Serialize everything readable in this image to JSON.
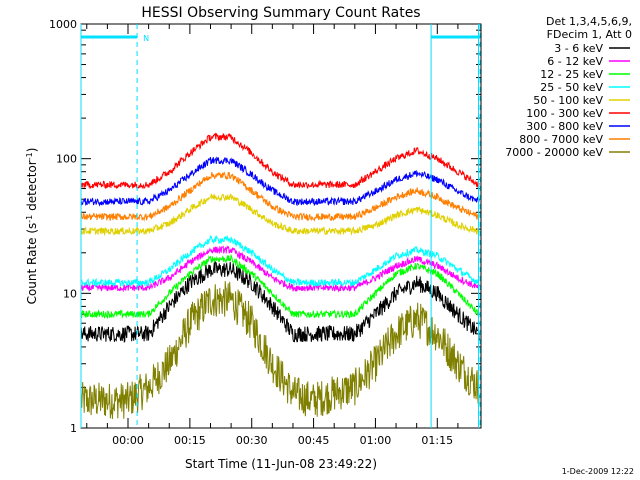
{
  "chart_data": {
    "type": "line",
    "title": "HESSI Observing Summary Count Rates",
    "xlabel": "Start Time (11-Jun-08 23:49:22)",
    "ylabel_main": "Count Rate (s",
    "ylabel_sup1": "-1",
    "ylabel_mid": " detector",
    "ylabel_sup2": "-1",
    "ylabel_end": ")",
    "yscale": "log",
    "ylim": [
      1,
      1000
    ],
    "xlim_minutes": [
      -11.4,
      85.6
    ],
    "x_ticks": [
      "00:00",
      "00:15",
      "00:30",
      "00:45",
      "01:00",
      "01:15"
    ],
    "y_ticks": [
      "1",
      "10",
      "100",
      "1000"
    ],
    "legend_header": [
      "Det 1,3,4,5,6,9,",
      "FDecim 1, Att 0"
    ],
    "legend_position": "top-right, outside plot",
    "timestamp": "1-Dec-2009 12:22",
    "night_marker_label": "N",
    "markers": {
      "color": "#00e0ff",
      "solid_vertical_minutes": [
        -11.4,
        73.5,
        85.0
      ],
      "dashed_vertical_minutes": [
        2.2,
        86.6
      ],
      "top_bar_segments_minutes": [
        [
          -11.4,
          2.2
        ],
        [
          73.5,
          85.6
        ]
      ],
      "top_bar_value": 800
    },
    "series": [
      {
        "name": "3 - 6 keV",
        "color": "#000000",
        "points": [
          [
            -11,
            5
          ],
          [
            -5,
            5
          ],
          [
            0,
            5
          ],
          [
            5,
            5
          ],
          [
            10,
            8
          ],
          [
            15,
            12
          ],
          [
            20,
            15
          ],
          [
            25,
            15
          ],
          [
            30,
            12
          ],
          [
            35,
            8
          ],
          [
            40,
            5
          ],
          [
            45,
            5
          ],
          [
            50,
            5
          ],
          [
            55,
            5
          ],
          [
            60,
            7
          ],
          [
            65,
            10
          ],
          [
            70,
            12
          ],
          [
            75,
            10
          ],
          [
            80,
            7
          ],
          [
            85,
            5
          ]
        ]
      },
      {
        "name": "6 - 12 keV",
        "color": "#ff00ff",
        "points": [
          [
            -11,
            11
          ],
          [
            -5,
            11
          ],
          [
            0,
            11
          ],
          [
            5,
            11
          ],
          [
            10,
            13
          ],
          [
            15,
            17
          ],
          [
            20,
            21
          ],
          [
            25,
            21
          ],
          [
            30,
            17
          ],
          [
            35,
            13
          ],
          [
            40,
            11
          ],
          [
            45,
            11
          ],
          [
            50,
            11
          ],
          [
            55,
            11
          ],
          [
            60,
            13
          ],
          [
            65,
            16
          ],
          [
            70,
            18
          ],
          [
            75,
            16
          ],
          [
            80,
            13
          ],
          [
            85,
            11
          ]
        ]
      },
      {
        "name": "12 - 25 keV",
        "color": "#00ff00",
        "points": [
          [
            -11,
            7
          ],
          [
            -5,
            7
          ],
          [
            0,
            7
          ],
          [
            5,
            7
          ],
          [
            10,
            10
          ],
          [
            15,
            14
          ],
          [
            20,
            18
          ],
          [
            25,
            18
          ],
          [
            30,
            14
          ],
          [
            35,
            10
          ],
          [
            40,
            7
          ],
          [
            45,
            7
          ],
          [
            50,
            7
          ],
          [
            55,
            7
          ],
          [
            60,
            10
          ],
          [
            65,
            14
          ],
          [
            70,
            16
          ],
          [
            75,
            14
          ],
          [
            80,
            10
          ],
          [
            85,
            7
          ]
        ]
      },
      {
        "name": "25 - 50 keV",
        "color": "#00ffff",
        "points": [
          [
            -11,
            12
          ],
          [
            -5,
            12
          ],
          [
            0,
            12
          ],
          [
            5,
            12
          ],
          [
            10,
            15
          ],
          [
            15,
            20
          ],
          [
            20,
            25
          ],
          [
            25,
            25
          ],
          [
            30,
            20
          ],
          [
            35,
            15
          ],
          [
            40,
            12
          ],
          [
            45,
            12
          ],
          [
            50,
            12
          ],
          [
            55,
            12
          ],
          [
            60,
            15
          ],
          [
            65,
            19
          ],
          [
            70,
            21
          ],
          [
            75,
            19
          ],
          [
            80,
            15
          ],
          [
            85,
            12
          ]
        ]
      },
      {
        "name": "50 - 100 keV",
        "color": "#e0d000",
        "points": [
          [
            -11,
            29
          ],
          [
            -5,
            29
          ],
          [
            0,
            29
          ],
          [
            5,
            29
          ],
          [
            10,
            33
          ],
          [
            15,
            42
          ],
          [
            20,
            52
          ],
          [
            25,
            52
          ],
          [
            30,
            42
          ],
          [
            35,
            33
          ],
          [
            40,
            29
          ],
          [
            45,
            29
          ],
          [
            50,
            29
          ],
          [
            55,
            29
          ],
          [
            60,
            32
          ],
          [
            65,
            38
          ],
          [
            70,
            42
          ],
          [
            75,
            38
          ],
          [
            80,
            32
          ],
          [
            85,
            29
          ]
        ]
      },
      {
        "name": "100 - 300 keV",
        "color": "#ff0000",
        "points": [
          [
            -11,
            64
          ],
          [
            -5,
            64
          ],
          [
            0,
            64
          ],
          [
            5,
            64
          ],
          [
            10,
            80
          ],
          [
            15,
            110
          ],
          [
            20,
            145
          ],
          [
            25,
            145
          ],
          [
            30,
            110
          ],
          [
            35,
            80
          ],
          [
            40,
            64
          ],
          [
            45,
            64
          ],
          [
            50,
            64
          ],
          [
            55,
            64
          ],
          [
            60,
            80
          ],
          [
            65,
            100
          ],
          [
            70,
            115
          ],
          [
            75,
            100
          ],
          [
            80,
            80
          ],
          [
            85,
            64
          ]
        ]
      },
      {
        "name": "300 - 800 keV",
        "color": "#0000ff",
        "points": [
          [
            -11,
            48
          ],
          [
            -5,
            48
          ],
          [
            0,
            48
          ],
          [
            5,
            48
          ],
          [
            10,
            58
          ],
          [
            15,
            76
          ],
          [
            20,
            97
          ],
          [
            25,
            97
          ],
          [
            30,
            76
          ],
          [
            35,
            58
          ],
          [
            40,
            48
          ],
          [
            45,
            48
          ],
          [
            50,
            48
          ],
          [
            55,
            48
          ],
          [
            60,
            57
          ],
          [
            65,
            70
          ],
          [
            70,
            78
          ],
          [
            75,
            70
          ],
          [
            80,
            57
          ],
          [
            85,
            48
          ]
        ]
      },
      {
        "name": "800 - 7000 keV",
        "color": "#ff7f00",
        "points": [
          [
            -11,
            37
          ],
          [
            -5,
            37
          ],
          [
            0,
            37
          ],
          [
            5,
            37
          ],
          [
            10,
            44
          ],
          [
            15,
            58
          ],
          [
            20,
            75
          ],
          [
            25,
            75
          ],
          [
            30,
            58
          ],
          [
            35,
            44
          ],
          [
            40,
            37
          ],
          [
            45,
            37
          ],
          [
            50,
            37
          ],
          [
            55,
            37
          ],
          [
            60,
            43
          ],
          [
            65,
            52
          ],
          [
            70,
            58
          ],
          [
            75,
            52
          ],
          [
            80,
            43
          ],
          [
            85,
            37
          ]
        ]
      },
      {
        "name": "7000 - 20000 keV",
        "color": "#808000",
        "points": [
          [
            -11,
            1.6
          ],
          [
            -5,
            1.6
          ],
          [
            0,
            1.6
          ],
          [
            5,
            2
          ],
          [
            10,
            3
          ],
          [
            15,
            6
          ],
          [
            20,
            9
          ],
          [
            25,
            9
          ],
          [
            30,
            6
          ],
          [
            35,
            3
          ],
          [
            40,
            1.8
          ],
          [
            45,
            1.6
          ],
          [
            50,
            1.8
          ],
          [
            55,
            2
          ],
          [
            60,
            3
          ],
          [
            65,
            5
          ],
          [
            70,
            6.5
          ],
          [
            75,
            5
          ],
          [
            80,
            3
          ],
          [
            85,
            2
          ]
        ]
      }
    ]
  }
}
